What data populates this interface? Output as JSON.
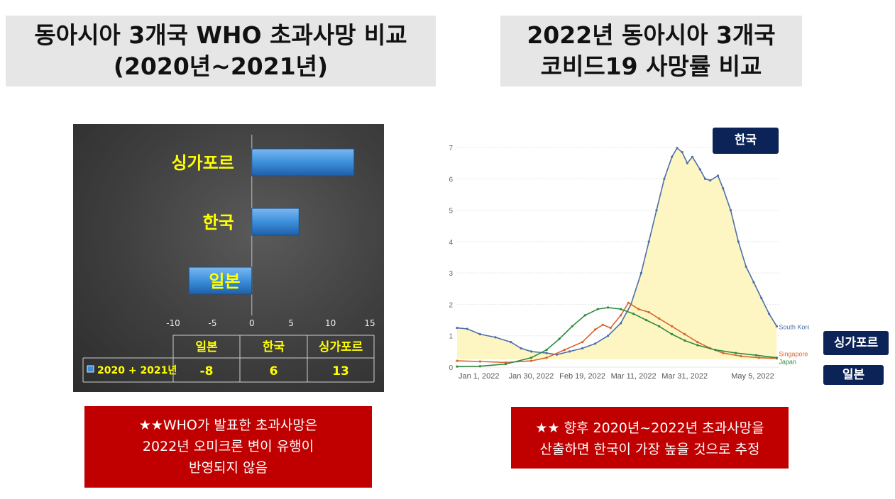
{
  "left_title": {
    "line1": "동아시아 3개국 WHO 초과사망 비교",
    "line2": "(2020년~2021년)"
  },
  "right_title": {
    "line1": "2022년 동아시아 3개국",
    "line2": "코비드19 사망률 비교"
  },
  "chart_data": [
    {
      "type": "bar",
      "orientation": "horizontal",
      "categories": [
        "싱가포르",
        "한국",
        "일본"
      ],
      "series": [
        {
          "name": "2020 + 2021년",
          "values": [
            13,
            6,
            -8
          ]
        }
      ],
      "xlim": [
        -10,
        15
      ],
      "xticks": [
        "-10",
        "-5",
        "0",
        "5",
        "10",
        "15"
      ],
      "table": {
        "headers": [
          "일본",
          "한국",
          "싱가포르"
        ],
        "row_label": "2020 + 2021년",
        "cells": [
          "-8",
          "6",
          "13"
        ]
      },
      "colors": {
        "bar": "#3c8fdc",
        "label": "#ffff00",
        "background": "#404040"
      }
    },
    {
      "type": "line",
      "ylim": [
        0,
        7
      ],
      "yticks": [
        "0",
        "1",
        "2",
        "3",
        "4",
        "5",
        "6",
        "7"
      ],
      "xlim": [
        "2022-01-01",
        "2022-05-07"
      ],
      "xticks": [
        "Jan 1, 2022",
        "Jan 30, 2022",
        "Feb 19, 2022",
        "Mar 11, 2022",
        "Mar 31, 2022",
        "May 5, 2022"
      ],
      "grid": true,
      "series": [
        {
          "name": "South Korea",
          "color": "#4c6fa8",
          "points": [
            [
              "2022-01-01",
              1.25
            ],
            [
              "2022-01-05",
              1.22
            ],
            [
              "2022-01-10",
              1.05
            ],
            [
              "2022-01-16",
              0.95
            ],
            [
              "2022-01-22",
              0.8
            ],
            [
              "2022-01-26",
              0.6
            ],
            [
              "2022-01-30",
              0.5
            ],
            [
              "2022-02-05",
              0.45
            ],
            [
              "2022-02-09",
              0.4
            ],
            [
              "2022-02-14",
              0.5
            ],
            [
              "2022-02-19",
              0.6
            ],
            [
              "2022-02-24",
              0.75
            ],
            [
              "2022-03-01",
              1.0
            ],
            [
              "2022-03-06",
              1.4
            ],
            [
              "2022-03-10",
              2.0
            ],
            [
              "2022-03-14",
              3.0
            ],
            [
              "2022-03-17",
              4.0
            ],
            [
              "2022-03-20",
              5.0
            ],
            [
              "2022-03-23",
              6.0
            ],
            [
              "2022-03-26",
              6.7
            ],
            [
              "2022-03-28",
              6.98
            ],
            [
              "2022-03-30",
              6.85
            ],
            [
              "2022-04-01",
              6.5
            ],
            [
              "2022-04-03",
              6.7
            ],
            [
              "2022-04-06",
              6.3
            ],
            [
              "2022-04-08",
              6.0
            ],
            [
              "2022-04-10",
              5.95
            ],
            [
              "2022-04-13",
              6.1
            ],
            [
              "2022-04-15",
              5.7
            ],
            [
              "2022-04-18",
              5.0
            ],
            [
              "2022-04-21",
              4.0
            ],
            [
              "2022-04-24",
              3.2
            ],
            [
              "2022-04-27",
              2.7
            ],
            [
              "2022-04-30",
              2.2
            ],
            [
              "2022-05-03",
              1.7
            ],
            [
              "2022-05-06",
              1.3
            ]
          ]
        },
        {
          "name": "Singapore",
          "color": "#d9662e",
          "points": [
            [
              "2022-01-01",
              0.2
            ],
            [
              "2022-01-10",
              0.18
            ],
            [
              "2022-01-20",
              0.15
            ],
            [
              "2022-01-30",
              0.2
            ],
            [
              "2022-02-05",
              0.3
            ],
            [
              "2022-02-12",
              0.55
            ],
            [
              "2022-02-19",
              0.8
            ],
            [
              "2022-02-24",
              1.2
            ],
            [
              "2022-02-27",
              1.35
            ],
            [
              "2022-03-02",
              1.25
            ],
            [
              "2022-03-06",
              1.65
            ],
            [
              "2022-03-09",
              2.05
            ],
            [
              "2022-03-13",
              1.85
            ],
            [
              "2022-03-17",
              1.75
            ],
            [
              "2022-03-21",
              1.55
            ],
            [
              "2022-03-26",
              1.3
            ],
            [
              "2022-03-31",
              1.05
            ],
            [
              "2022-04-05",
              0.8
            ],
            [
              "2022-04-10",
              0.6
            ],
            [
              "2022-04-15",
              0.45
            ],
            [
              "2022-04-22",
              0.35
            ],
            [
              "2022-04-29",
              0.3
            ],
            [
              "2022-05-06",
              0.28
            ]
          ]
        },
        {
          "name": "Japan",
          "color": "#2e8b3e",
          "points": [
            [
              "2022-01-01",
              0.02
            ],
            [
              "2022-01-10",
              0.03
            ],
            [
              "2022-01-20",
              0.1
            ],
            [
              "2022-01-30",
              0.3
            ],
            [
              "2022-02-05",
              0.55
            ],
            [
              "2022-02-10",
              0.9
            ],
            [
              "2022-02-15",
              1.3
            ],
            [
              "2022-02-20",
              1.65
            ],
            [
              "2022-02-25",
              1.85
            ],
            [
              "2022-03-01",
              1.9
            ],
            [
              "2022-03-06",
              1.85
            ],
            [
              "2022-03-11",
              1.7
            ],
            [
              "2022-03-16",
              1.5
            ],
            [
              "2022-03-21",
              1.3
            ],
            [
              "2022-03-26",
              1.05
            ],
            [
              "2022-03-31",
              0.85
            ],
            [
              "2022-04-05",
              0.7
            ],
            [
              "2022-04-12",
              0.55
            ],
            [
              "2022-04-20",
              0.45
            ],
            [
              "2022-04-28",
              0.38
            ],
            [
              "2022-05-06",
              0.3
            ]
          ]
        }
      ],
      "fill_color": "#fdf6c3",
      "callouts": {
        "korea": "한국",
        "singapore": "싱가포르",
        "japan": "일본"
      }
    }
  ],
  "notes": {
    "left": {
      "line1": "★★WHO가 발표한 초과사망은",
      "line2": "2022년 오미크론 변이 유행이",
      "line3": "반영되지 않음"
    },
    "right": {
      "line1": "★★ 향후 2020년~2022년 초과사망을",
      "line2": "산출하면 한국이 가장 높을 것으로 추정"
    }
  }
}
